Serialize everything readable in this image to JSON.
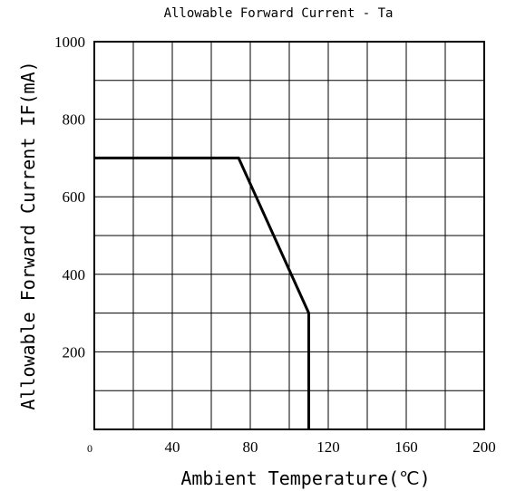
{
  "chart_data": {
    "type": "line",
    "title": "Allowable Forward Current - Ta",
    "xlabel": "Ambient Temperature(℃)",
    "ylabel": "Allowable Forward Current IF(mA)",
    "xlim": [
      0,
      200
    ],
    "ylim": [
      0,
      1000
    ],
    "x_ticks": [
      0,
      40,
      80,
      120,
      160,
      200
    ],
    "y_ticks": [
      200,
      400,
      600,
      800,
      1000
    ],
    "x_grid_step": 20,
    "y_grid_step": 100,
    "grid": true,
    "series": [
      {
        "points": [
          {
            "x": 0,
            "y": 700
          },
          {
            "x": 74,
            "y": 700
          },
          {
            "x": 110,
            "y": 300
          },
          {
            "x": 110,
            "y": 0
          }
        ]
      }
    ]
  }
}
